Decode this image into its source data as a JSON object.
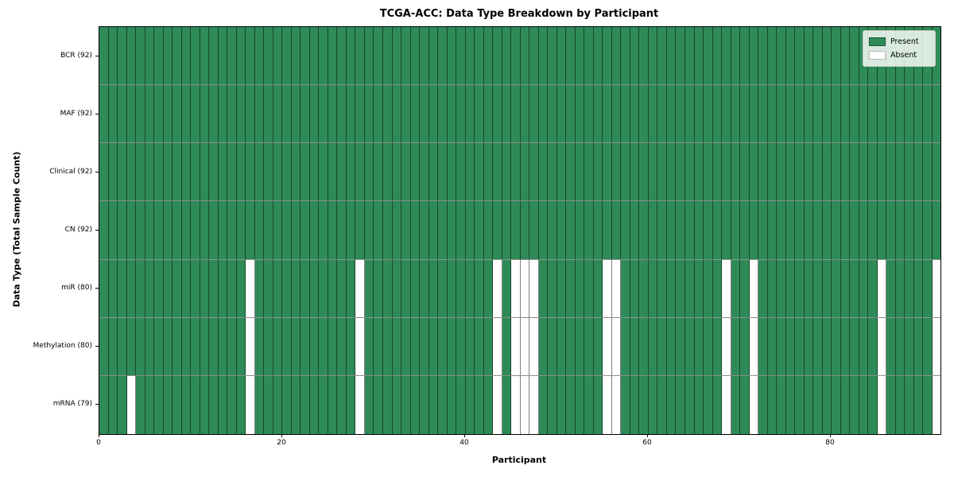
{
  "chart_data": {
    "type": "heatmap",
    "title": "TCGA-ACC: Data Type Breakdown by Participant",
    "xlabel": "Participant",
    "ylabel": "Data Type (Total Sample Count)",
    "n_participants": 92,
    "x_ticks": [
      0,
      20,
      40,
      60,
      80
    ],
    "rows": [
      {
        "label": "BCR (92)",
        "total": 92,
        "absent": []
      },
      {
        "label": "MAF (92)",
        "total": 92,
        "absent": []
      },
      {
        "label": "Clinical (92)",
        "total": 92,
        "absent": []
      },
      {
        "label": "CN (92)",
        "total": 92,
        "absent": []
      },
      {
        "label": "miR (80)",
        "total": 80,
        "absent": [
          16,
          28,
          43,
          45,
          46,
          47,
          55,
          56,
          68,
          71,
          85,
          91
        ]
      },
      {
        "label": "Methylation (80)",
        "total": 80,
        "absent": [
          16,
          28,
          43,
          45,
          46,
          47,
          55,
          56,
          68,
          71,
          85,
          91
        ]
      },
      {
        "label": "mRNA (79)",
        "total": 79,
        "absent": [
          3,
          16,
          28,
          43,
          45,
          46,
          47,
          55,
          56,
          68,
          71,
          85,
          91
        ]
      }
    ],
    "legend": [
      {
        "label": "Present",
        "color": "#2e8b57"
      },
      {
        "label": "Absent",
        "color": "#ffffff"
      }
    ],
    "colors": {
      "present": "#2e8b57",
      "absent": "#ffffff",
      "cell_edge": "rgba(0,0,0,0.5)",
      "spine": "#000000"
    },
    "legend_position": "upper right",
    "grid": "cell-borders"
  }
}
